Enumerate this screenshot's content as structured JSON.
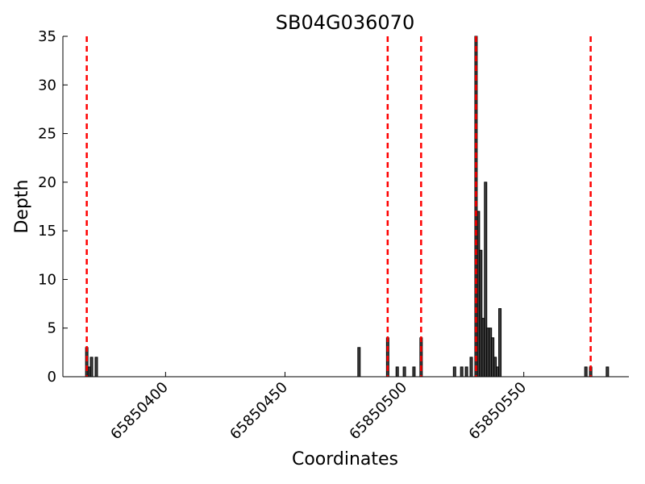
{
  "chart_data": {
    "type": "bar",
    "title": "SB04G036070",
    "xlabel": "Coordinates",
    "ylabel": "Depth",
    "x": [
      65850367,
      65850368,
      65850369,
      65850371,
      65850481,
      65850493,
      65850497,
      65850500,
      65850504,
      65850507,
      65850521,
      65850524,
      65850526,
      65850528,
      65850530,
      65850531,
      65850532,
      65850533,
      65850534,
      65850535,
      65850536,
      65850537,
      65850538,
      65850539,
      65850540,
      65850576,
      65850578,
      65850585
    ],
    "values": [
      3,
      1,
      2,
      2,
      3,
      4,
      1,
      1,
      1,
      4,
      1,
      1,
      1,
      2,
      35,
      17,
      13,
      6,
      20,
      5,
      5,
      4,
      2,
      1,
      7,
      1,
      1,
      1
    ],
    "color": "#404040",
    "vlines": [
      65850367,
      65850493,
      65850507,
      65850530,
      65850578
    ],
    "vline_color": "#ff0000",
    "xlim": [
      65850357,
      65850594
    ],
    "xticks": [
      65850400,
      65850450,
      65850500,
      65850550
    ],
    "ylim": [
      0,
      35
    ],
    "yticks": [
      0,
      5,
      10,
      15,
      20,
      25,
      30,
      35
    ]
  }
}
